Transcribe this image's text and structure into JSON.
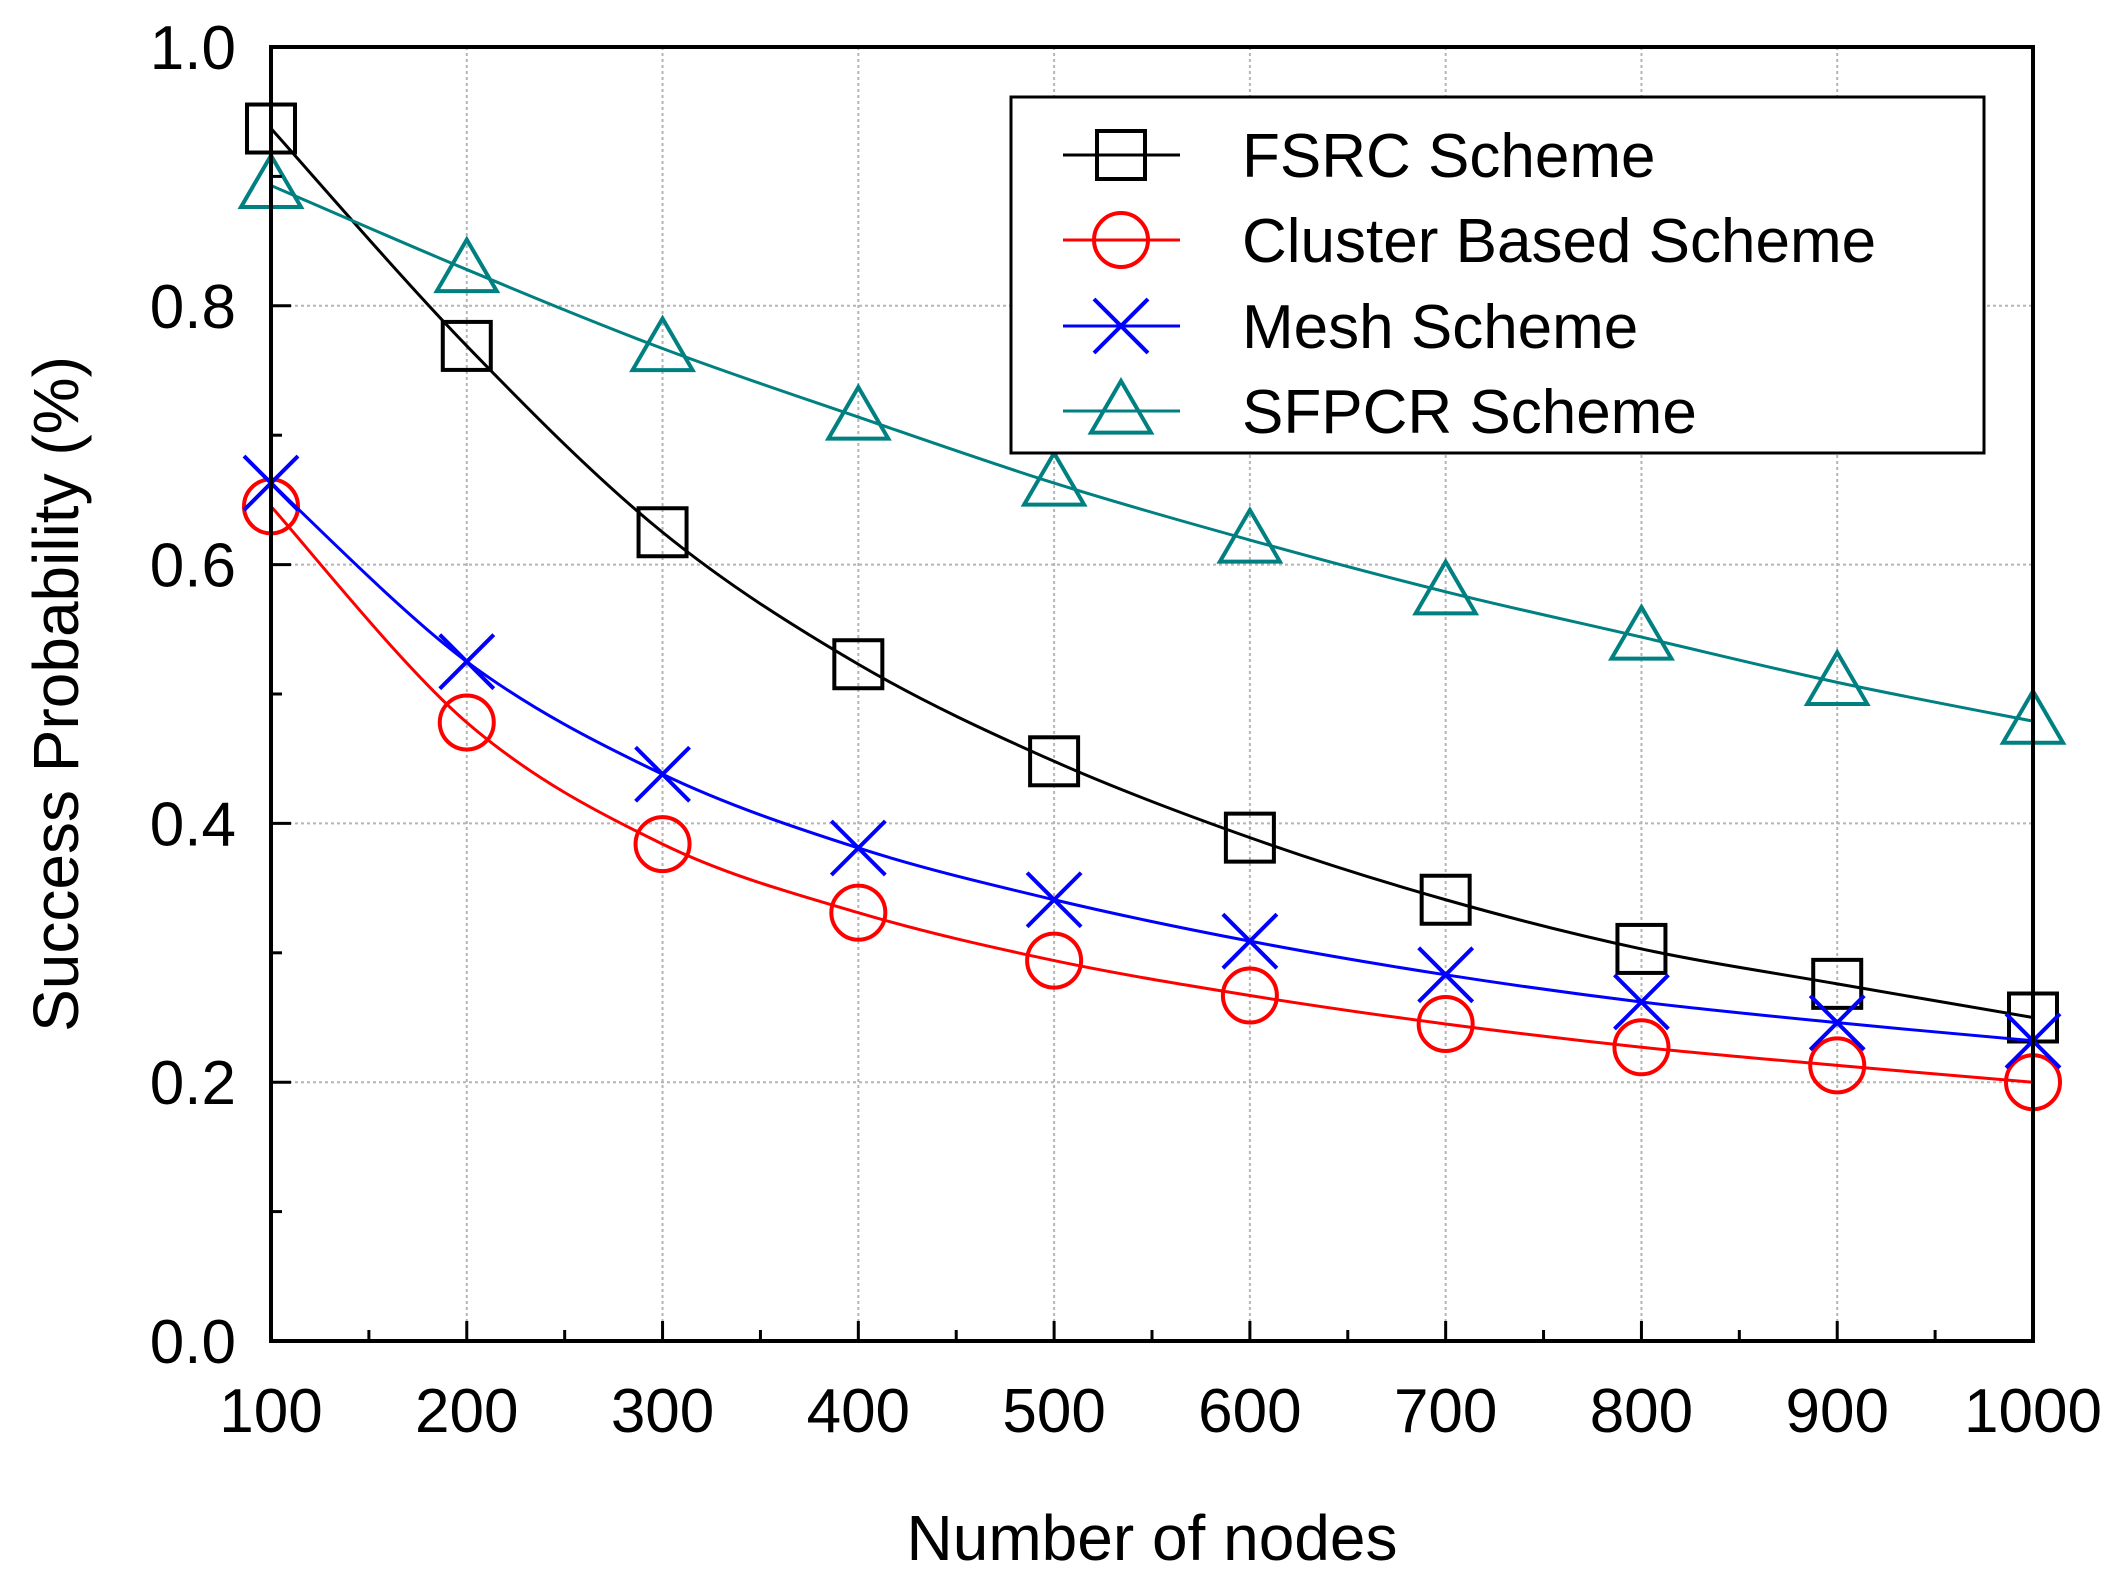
{
  "chart_data": {
    "type": "line",
    "title": "",
    "xlabel": "Number of nodes",
    "ylabel": "Success Probability (%)",
    "xlim": [
      100,
      1000
    ],
    "ylim": [
      0.0,
      1.0
    ],
    "x_ticks": [
      "100",
      "200",
      "300",
      "400",
      "500",
      "600",
      "700",
      "800",
      "900",
      "1000"
    ],
    "y_ticks": [
      "0.0",
      "0.2",
      "0.4",
      "0.6",
      "0.8",
      "1.0"
    ],
    "grid": true,
    "legend_position": "top-right",
    "x": [
      100,
      200,
      300,
      400,
      500,
      600,
      700,
      800,
      900,
      1000
    ],
    "series": [
      {
        "name": "FSRC Scheme",
        "marker": "square",
        "color": "#000000",
        "values": [
          0.937,
          0.769,
          0.625,
          0.523,
          0.448,
          0.389,
          0.341,
          0.303,
          0.276,
          0.25
        ]
      },
      {
        "name": "Cluster Based Scheme",
        "marker": "circle",
        "color": "#ff0000",
        "values": [
          0.645,
          0.478,
          0.384,
          0.331,
          0.294,
          0.267,
          0.245,
          0.227,
          0.213,
          0.2
        ]
      },
      {
        "name": "Mesh Scheme",
        "marker": "x",
        "color": "#0000ff",
        "values": [
          0.663,
          0.525,
          0.438,
          0.381,
          0.341,
          0.309,
          0.283,
          0.262,
          0.246,
          0.232
        ]
      },
      {
        "name": "SFPCR Scheme",
        "marker": "triangle",
        "color": "#008080",
        "values": [
          0.893,
          0.828,
          0.767,
          0.714,
          0.663,
          0.619,
          0.579,
          0.544,
          0.509,
          0.479
        ]
      }
    ]
  }
}
